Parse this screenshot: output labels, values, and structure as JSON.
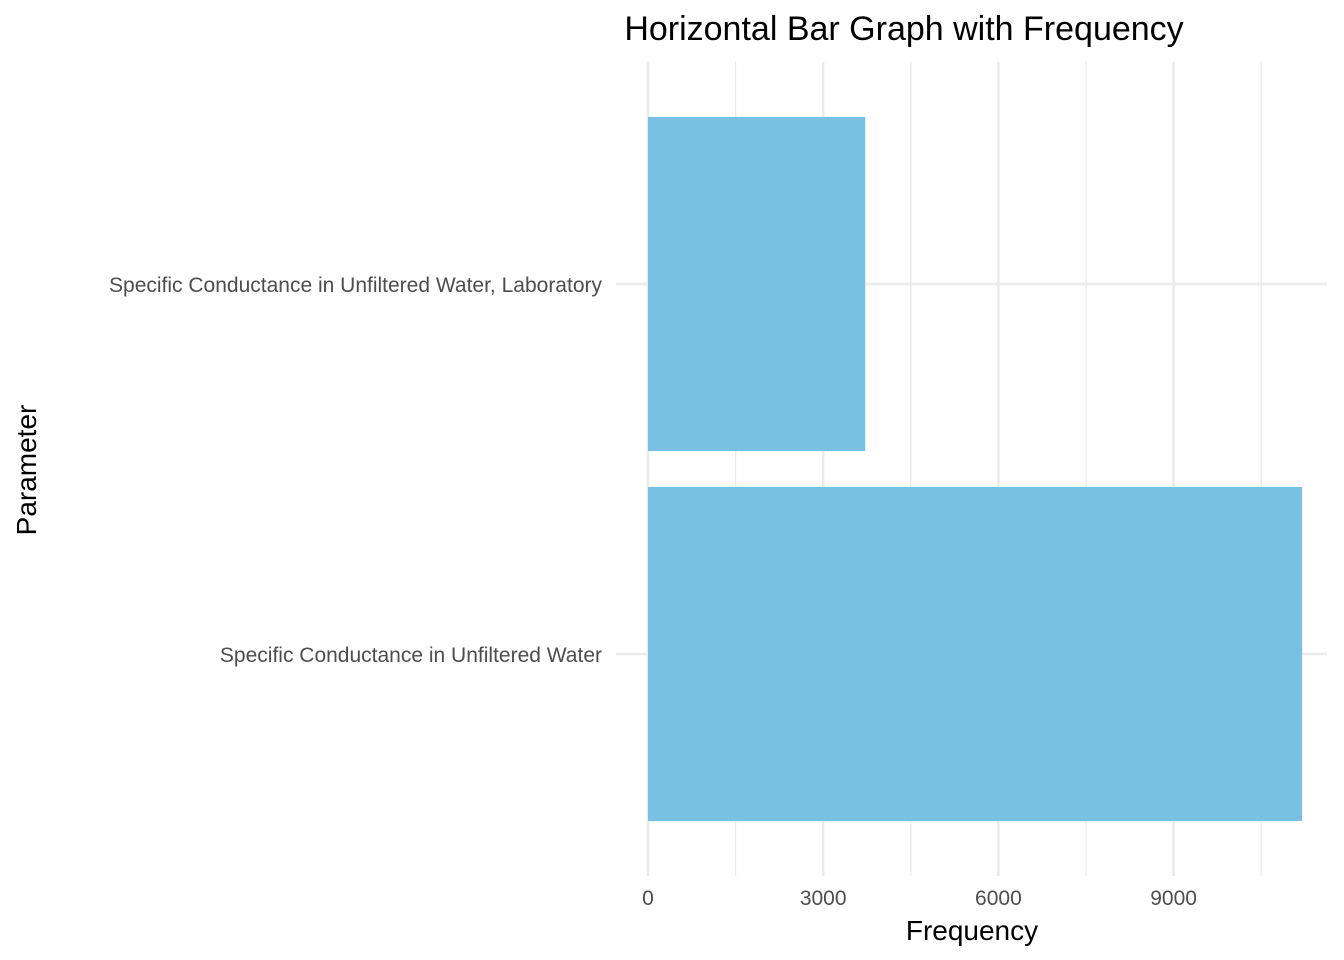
{
  "chart_data": {
    "type": "bar",
    "orientation": "horizontal",
    "title": "Horizontal Bar Graph with Frequency",
    "xlabel": "Frequency",
    "ylabel": "Parameter",
    "categories": [
      "Specific Conductance in Unfiltered Water",
      "Specific Conductance in Unfiltered Water, Laboratory"
    ],
    "values": [
      11200,
      3720
    ],
    "xlim": [
      0,
      11750
    ],
    "xticks": [
      0,
      3000,
      6000,
      9000
    ],
    "xtick_labels": [
      "0",
      "3000",
      "6000",
      "9000"
    ],
    "x_minor_ticks": [
      1500,
      4500,
      7500,
      10500
    ],
    "bar_color": "#78c1e3",
    "grid": true,
    "legend": "none"
  }
}
